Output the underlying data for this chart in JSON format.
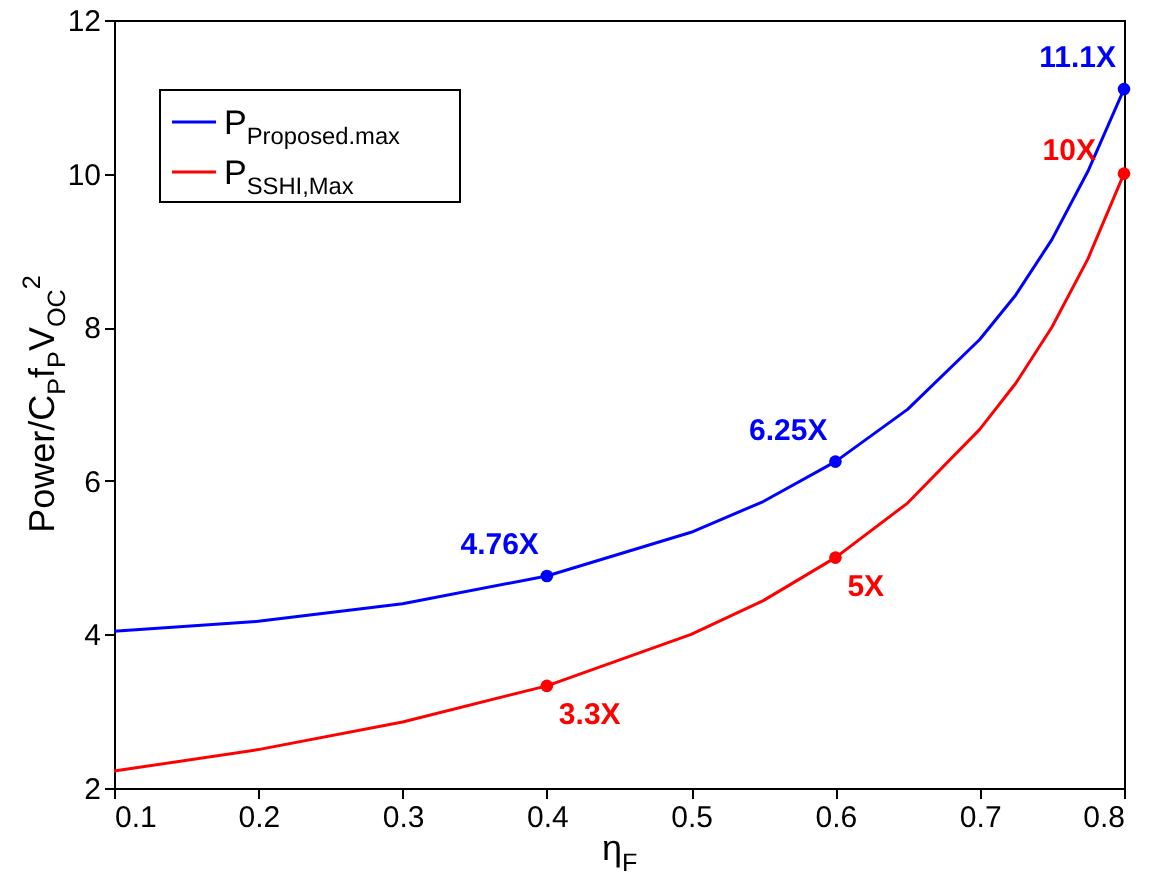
{
  "chart_data": {
    "type": "line",
    "xlabel": "η$_{F}$",
    "ylabel": "Power/C$_{P}$f$_{P}$V$_{OC}$$^{2}$",
    "x": [
      0.1,
      0.2,
      0.3,
      0.4,
      0.5,
      0.55,
      0.6,
      0.65,
      0.7,
      0.725,
      0.75,
      0.775,
      0.8
    ],
    "series": [
      {
        "name": "P$_{Proposed.max}$",
        "color": "#0000ff",
        "values": [
          4.04,
          4.17,
          4.4,
          4.76,
          5.33,
          5.73,
          6.25,
          6.93,
          7.84,
          8.42,
          9.14,
          10.03,
          11.1
        ]
      },
      {
        "name": "P$_{SSHI,Max}$",
        "color": "#ff0000",
        "values": [
          2.22,
          2.5,
          2.86,
          3.33,
          4.0,
          4.44,
          5.0,
          5.71,
          6.67,
          7.27,
          8.0,
          8.89,
          10.0
        ]
      }
    ],
    "annotations": [
      {
        "text": "4.76X",
        "x": 0.4,
        "y": 4.76
      },
      {
        "text": "6.25X",
        "x": 0.6,
        "y": 6.25
      },
      {
        "text": "11.1X",
        "x": 0.8,
        "y": 11.1
      },
      {
        "text": "3.3X",
        "x": 0.4,
        "y": 3.33
      },
      {
        "text": "5X",
        "x": 0.6,
        "y": 5.0
      },
      {
        "text": "10X",
        "x": 0.8,
        "y": 10.0
      }
    ],
    "xlim": [
      0.1,
      0.8
    ],
    "xticks": [
      0.1,
      0.2,
      0.3,
      0.4,
      0.5,
      0.6,
      0.7,
      0.8
    ],
    "ylim": [
      2,
      12
    ],
    "yticks": [
      2,
      4,
      6,
      8,
      10,
      12
    ],
    "grid": false,
    "legend": "top left",
    "marker": "none",
    "line_style": "solid"
  }
}
